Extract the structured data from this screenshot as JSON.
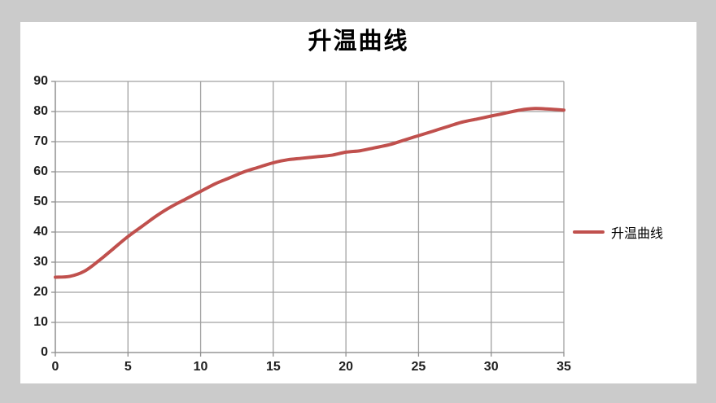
{
  "title": "升温曲线",
  "legend": {
    "label": "升温曲线"
  },
  "colors": {
    "page_background": "#cbcbcb",
    "canvas_background": "#ffffff",
    "curve": "#c0504d",
    "gridline": "#a1a1a1",
    "axis": "#8e8e8e",
    "tick": "#8e8e8e",
    "label_text": "#1f1f1f",
    "title_text": "#000000"
  },
  "chart_data": {
    "type": "line",
    "title": "升温曲线",
    "xlabel": "",
    "ylabel": "",
    "xlim": [
      0,
      35
    ],
    "ylim": [
      0,
      90
    ],
    "x_ticks": [
      0,
      5,
      10,
      15,
      20,
      25,
      30,
      35
    ],
    "y_ticks": [
      0,
      10,
      20,
      30,
      40,
      50,
      60,
      70,
      80,
      90
    ],
    "grid": "both",
    "legend_position": "right",
    "smooth_line": true,
    "x": [
      0,
      1,
      2,
      3,
      4,
      5,
      6,
      7,
      8,
      9,
      10,
      11,
      12,
      13,
      14,
      15,
      16,
      17,
      18,
      19,
      20,
      21,
      22,
      23,
      24,
      25,
      26,
      27,
      28,
      29,
      30,
      31,
      32,
      33,
      34,
      35
    ],
    "series": [
      {
        "name": "升温曲线",
        "color": "#c0504d",
        "values": [
          25,
          25.3,
          27,
          30.5,
          34.5,
          38.5,
          42,
          45.5,
          48.5,
          51,
          53.5,
          56,
          58,
          60,
          61.5,
          63,
          64,
          64.5,
          65,
          65.5,
          66.5,
          67,
          68,
          69,
          70.5,
          72,
          73.5,
          75,
          76.5,
          77.5,
          78.5,
          79.5,
          80.5,
          81,
          80.8,
          80.5
        ]
      }
    ]
  }
}
